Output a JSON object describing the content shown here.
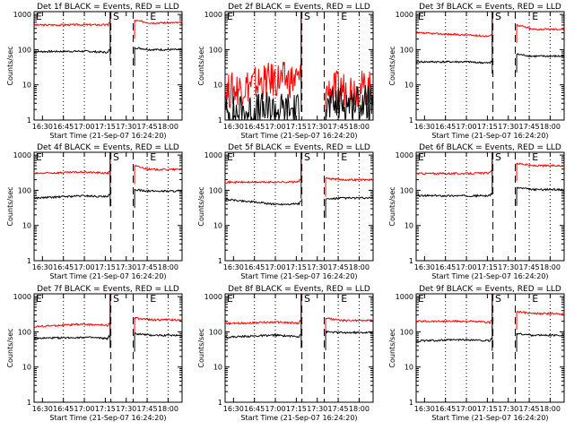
{
  "chart_data": {
    "type": "line",
    "panels": [
      {
        "title": "Det 1f BLACK = Events, RED = LLD",
        "black": [
          88,
          90,
          42,
          115,
          100
        ],
        "red": [
          500,
          510,
          480,
          680,
          580
        ],
        "noisy": false
      },
      {
        "title": "Det 2f BLACK = Events, RED = LLD",
        "black": [
          1.5,
          2,
          1.5,
          2,
          3
        ],
        "red": [
          6,
          14,
          10,
          6,
          8
        ],
        "noisy": true
      },
      {
        "title": "Det 3f BLACK = Events, RED = LLD",
        "black": [
          45,
          45,
          18,
          75,
          65
        ],
        "red": [
          300,
          260,
          120,
          520,
          380
        ],
        "noisy": false
      },
      {
        "title": "Det 4f BLACK = Events, RED = LLD",
        "black": [
          60,
          70,
          30,
          105,
          95
        ],
        "red": [
          300,
          330,
          140,
          500,
          390
        ],
        "noisy": false
      },
      {
        "title": "Det 5f BLACK = Events, RED = LLD",
        "black": [
          55,
          40,
          50,
          55,
          60
        ],
        "red": [
          170,
          170,
          200,
          220,
          200
        ],
        "noisy": false
      },
      {
        "title": "Det 6f BLACK = Events, RED = LLD",
        "black": [
          70,
          70,
          70,
          120,
          105
        ],
        "red": [
          300,
          300,
          380,
          600,
          500
        ],
        "noisy": false
      },
      {
        "title": "Det 7f BLACK = Events, RED = LLD",
        "black": [
          65,
          70,
          30,
          90,
          80
        ],
        "red": [
          140,
          165,
          70,
          250,
          220
        ],
        "noisy": false
      },
      {
        "title": "Det 8f BLACK = Events, RED = LLD",
        "black": [
          70,
          80,
          30,
          100,
          95
        ],
        "red": [
          170,
          190,
          80,
          250,
          210
        ],
        "noisy": false
      },
      {
        "title": "Det 9f BLACK = Events, RED = LLD",
        "black": [
          55,
          60,
          25,
          90,
          80
        ],
        "red": [
          200,
          200,
          90,
          380,
          330
        ],
        "noisy": false
      }
    ],
    "x_ticks": [
      "16:30",
      "16:45",
      "17:00",
      "17:15",
      "17:30",
      "17:45",
      "18:00"
    ],
    "x_tick_minutes": [
      -4,
      11,
      26,
      41,
      56,
      71,
      86
    ],
    "x_range_minutes": [
      -10,
      96
    ],
    "xlabel": "Start Time (21-Sep-07 16:24:20)",
    "ylabel": "Counts/sec",
    "y_ticks": [
      "1",
      "10",
      "100",
      "1000"
    ],
    "ylim": [
      1,
      1200
    ],
    "y_scale": "log",
    "markers": [
      "E",
      "S",
      "E"
    ],
    "dashed_lines_minutes": [
      45,
      61
    ],
    "dotted_lines_minutes": [
      11,
      26,
      71,
      86
    ],
    "series": [
      {
        "name": "Events",
        "color": "#000000"
      },
      {
        "name": "LLD",
        "color": "#ff0000"
      }
    ]
  }
}
